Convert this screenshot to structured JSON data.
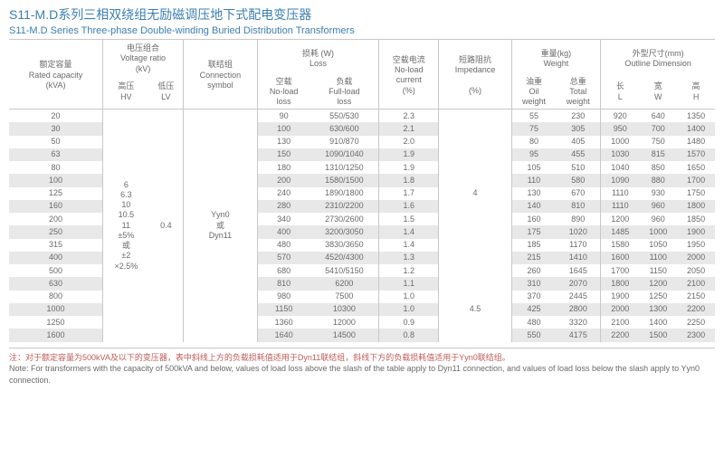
{
  "title_cn": "S11-M.D系列三相双绕组无励磁调压地下式配电变压器",
  "title_en": "S11-M.D Series Three-phase Double-winding Buried Distribution Transformers",
  "header": {
    "rated_cn": "额定容量",
    "rated_en": "Rated capacity",
    "rated_unit": "(kVA)",
    "volt_cn": "电压组合",
    "volt_en": "Voltage ratio",
    "volt_unit": "(kV)",
    "hv_cn": "高压",
    "hv_en": "HV",
    "lv_cn": "低压",
    "lv_en": "LV",
    "conn_cn": "联结组",
    "conn_en": "Connection",
    "conn_en2": "symbol",
    "loss_cn": "损耗 (W)",
    "loss_en": "Loss",
    "nl_cn": "空载",
    "nl_en": "No-load",
    "nl_en2": "loss",
    "fl_cn": "负载",
    "fl_en": "Full-load",
    "fl_en2": "loss",
    "nlc_cn": "空载电流",
    "nlc_en": "No-load",
    "nlc_en2": "current",
    "nlc_unit": "(%)",
    "imp_cn": "短路阻抗",
    "imp_en": "Impedance",
    "imp_unit": "(%)",
    "wt_cn": "重量(kg)",
    "wt_en": "Weight",
    "oil_cn": "油重",
    "oil_en": "Oil",
    "oil_en2": "weight",
    "tot_cn": "总重",
    "tot_en": "Total",
    "tot_en2": "weight",
    "dim_cn": "外型尺寸(mm)",
    "dim_en": "Outline Dimension",
    "L_cn": "长",
    "L_en": "L",
    "W_cn": "宽",
    "W_en": "W",
    "H_cn": "高",
    "H_en": "H"
  },
  "hv_text": "6\n6.3\n10\n10.5\n11\n±5%\n或\n±2\n×2.5%",
  "lv_text": "0.4",
  "conn_text": "Yyn0\n或\nDyn11",
  "imp1": "4",
  "imp2": "4.5",
  "rows": [
    {
      "cap": "20",
      "nl": "90",
      "fl": "550/530",
      "nlc": "2.3",
      "oil": "55",
      "tot": "230",
      "L": "920",
      "W": "640",
      "H": "1350"
    },
    {
      "cap": "30",
      "nl": "100",
      "fl": "630/600",
      "nlc": "2.1",
      "oil": "75",
      "tot": "305",
      "L": "950",
      "W": "700",
      "H": "1400"
    },
    {
      "cap": "50",
      "nl": "130",
      "fl": "910/870",
      "nlc": "2.0",
      "oil": "80",
      "tot": "405",
      "L": "1000",
      "W": "750",
      "H": "1480"
    },
    {
      "cap": "63",
      "nl": "150",
      "fl": "1090/1040",
      "nlc": "1.9",
      "oil": "95",
      "tot": "455",
      "L": "1030",
      "W": "815",
      "H": "1570"
    },
    {
      "cap": "80",
      "nl": "180",
      "fl": "1310/1250",
      "nlc": "1.9",
      "oil": "105",
      "tot": "510",
      "L": "1040",
      "W": "850",
      "H": "1650"
    },
    {
      "cap": "100",
      "nl": "200",
      "fl": "1580/1500",
      "nlc": "1.8",
      "oil": "110",
      "tot": "580",
      "L": "1090",
      "W": "880",
      "H": "1700"
    },
    {
      "cap": "125",
      "nl": "240",
      "fl": "1890/1800",
      "nlc": "1.7",
      "oil": "130",
      "tot": "670",
      "L": "1110",
      "W": "930",
      "H": "1750"
    },
    {
      "cap": "160",
      "nl": "280",
      "fl": "2310/2200",
      "nlc": "1.6",
      "oil": "140",
      "tot": "810",
      "L": "1110",
      "W": "960",
      "H": "1800"
    },
    {
      "cap": "200",
      "nl": "340",
      "fl": "2730/2600",
      "nlc": "1.5",
      "oil": "160",
      "tot": "890",
      "L": "1200",
      "W": "960",
      "H": "1850"
    },
    {
      "cap": "250",
      "nl": "400",
      "fl": "3200/3050",
      "nlc": "1.4",
      "oil": "175",
      "tot": "1020",
      "L": "1485",
      "W": "1000",
      "H": "1900"
    },
    {
      "cap": "315",
      "nl": "480",
      "fl": "3830/3650",
      "nlc": "1.4",
      "oil": "185",
      "tot": "1170",
      "L": "1580",
      "W": "1050",
      "H": "1950"
    },
    {
      "cap": "400",
      "nl": "570",
      "fl": "4520/4300",
      "nlc": "1.3",
      "oil": "215",
      "tot": "1410",
      "L": "1600",
      "W": "1100",
      "H": "2000"
    },
    {
      "cap": "500",
      "nl": "680",
      "fl": "5410/5150",
      "nlc": "1.2",
      "oil": "260",
      "tot": "1645",
      "L": "1700",
      "W": "1150",
      "H": "2050"
    },
    {
      "cap": "630",
      "nl": "810",
      "fl": "6200",
      "nlc": "1.1",
      "oil": "310",
      "tot": "2070",
      "L": "1800",
      "W": "1200",
      "H": "2100"
    },
    {
      "cap": "800",
      "nl": "980",
      "fl": "7500",
      "nlc": "1.0",
      "oil": "370",
      "tot": "2445",
      "L": "1900",
      "W": "1250",
      "H": "2150"
    },
    {
      "cap": "1000",
      "nl": "1150",
      "fl": "10300",
      "nlc": "1.0",
      "oil": "425",
      "tot": "2800",
      "L": "2000",
      "W": "1300",
      "H": "2200"
    },
    {
      "cap": "1250",
      "nl": "1360",
      "fl": "12000",
      "nlc": "0.9",
      "oil": "480",
      "tot": "3320",
      "L": "2100",
      "W": "1400",
      "H": "2250"
    },
    {
      "cap": "1600",
      "nl": "1640",
      "fl": "14500",
      "nlc": "0.8",
      "oil": "550",
      "tot": "4175",
      "L": "2200",
      "W": "1500",
      "H": "2300"
    }
  ],
  "note_cn": "注：对于额定容量为500kVA及以下的变压器，表中斜线上方的负载损耗值适用于Dyn11联结组，斜线下方的负载损耗值适用于Yyn0联结组。",
  "note_en": "Note: For transformers with the capacity of 500kVA and below, values of load loss above the slash of the table apply to Dyn11 connection, and values of load loss below the slash apply to Yyn0 connection."
}
